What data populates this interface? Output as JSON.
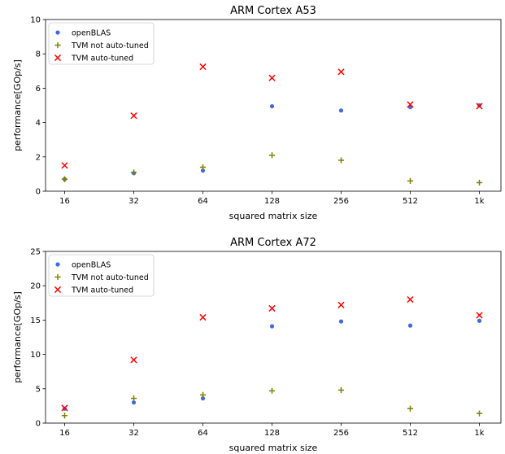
{
  "chart_data": [
    {
      "type": "scatter",
      "title": "ARM Cortex A53",
      "xlabel": "squared matrix size",
      "ylabel": "performance[GOp/s]",
      "categories": [
        "16",
        "32",
        "64",
        "128",
        "256",
        "512",
        "1k"
      ],
      "ylim": [
        0,
        10
      ],
      "yticks": [
        "0",
        "2",
        "4",
        "6",
        "8",
        "10"
      ],
      "legend_position": "top-left",
      "series": [
        {
          "name": "openBLAS",
          "marker": "dot",
          "color": "#4169e1",
          "values": [
            0.7,
            1.05,
            1.2,
            4.95,
            4.7,
            4.9,
            5.0
          ]
        },
        {
          "name": "TVM not auto-tuned",
          "marker": "plus",
          "color": "#808000",
          "values": [
            0.7,
            1.1,
            1.4,
            2.1,
            1.8,
            0.6,
            0.5
          ]
        },
        {
          "name": "TVM auto-tuned",
          "marker": "x",
          "color": "#ff0000",
          "values": [
            1.5,
            4.4,
            7.25,
            6.6,
            6.95,
            5.05,
            4.95
          ]
        }
      ]
    },
    {
      "type": "scatter",
      "title": "ARM Cortex A72",
      "xlabel": "squared matrix size",
      "ylabel": "performance[GOp/s]",
      "categories": [
        "16",
        "32",
        "64",
        "128",
        "256",
        "512",
        "1k"
      ],
      "ylim": [
        0,
        25
      ],
      "yticks": [
        "0",
        "5",
        "10",
        "15",
        "20",
        "25"
      ],
      "legend_position": "top-left",
      "series": [
        {
          "name": "openBLAS",
          "marker": "dot",
          "color": "#4169e1",
          "values": [
            2.1,
            3.0,
            3.6,
            14.1,
            14.8,
            14.2,
            14.9
          ]
        },
        {
          "name": "TVM not auto-tuned",
          "marker": "plus",
          "color": "#808000",
          "values": [
            1.1,
            3.6,
            4.1,
            4.7,
            4.8,
            2.1,
            1.4
          ]
        },
        {
          "name": "TVM auto-tuned",
          "marker": "x",
          "color": "#ff0000",
          "values": [
            2.2,
            9.2,
            15.4,
            16.7,
            17.2,
            18.0,
            15.7
          ]
        }
      ]
    }
  ]
}
